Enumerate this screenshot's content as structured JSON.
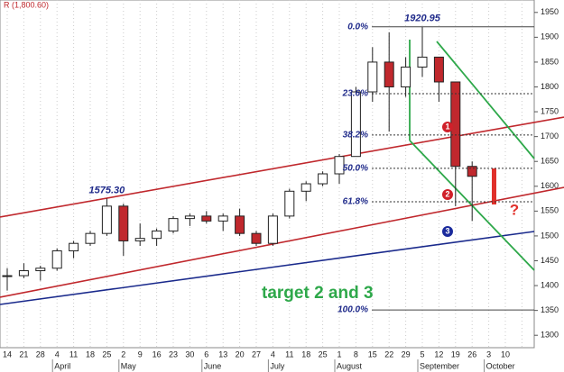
{
  "chart_data": {
    "type": "candlestick",
    "title": "R (1,800.60)",
    "categories": [
      "14",
      "21",
      "28",
      "4",
      "11",
      "18",
      "25",
      "2",
      "9",
      "16",
      "23",
      "30",
      "6",
      "13",
      "20",
      "27",
      "4",
      "11",
      "18",
      "25",
      "1",
      "8",
      "15",
      "22",
      "29",
      "5",
      "12",
      "19",
      "26",
      "3",
      "10",
      null
    ],
    "months": [
      null,
      null,
      null,
      "April",
      null,
      null,
      null,
      "May",
      null,
      null,
      null,
      null,
      "June",
      null,
      null,
      null,
      "July",
      null,
      null,
      null,
      "August",
      null,
      null,
      null,
      null,
      "September",
      null,
      null,
      null,
      "October",
      null,
      null
    ],
    "open": [
      1420,
      1420,
      1430,
      1435,
      1470,
      1485,
      1505,
      1560,
      1490,
      1495,
      1510,
      1535,
      1540,
      1530,
      1540,
      1505,
      1485,
      1540,
      1590,
      1605,
      1625,
      1660,
      1790,
      1850,
      1800,
      1840,
      1860,
      1810,
      1640,
      null,
      null,
      null
    ],
    "high": [
      1435,
      1445,
      1440,
      1475,
      1490,
      1510,
      1575.3,
      1565,
      1525,
      1515,
      1540,
      1545,
      1550,
      1545,
      1555,
      1510,
      1545,
      1595,
      1610,
      1630,
      1665,
      1800,
      1880,
      1910,
      1860,
      1920.95,
      1860,
      1810,
      1650,
      null,
      null,
      null
    ],
    "low": [
      1390,
      1415,
      1410,
      1430,
      1455,
      1480,
      1500,
      1460,
      1480,
      1480,
      1505,
      1520,
      1525,
      1510,
      1500,
      1480,
      1480,
      1535,
      1570,
      1600,
      1605,
      1660,
      1770,
      1710,
      1780,
      1820,
      1770,
      1560,
      1530,
      null,
      null,
      null
    ],
    "close": [
      1420,
      1430,
      1435,
      1470,
      1485,
      1505,
      1560,
      1490,
      1495,
      1510,
      1535,
      1540,
      1530,
      1540,
      1505,
      1485,
      1540,
      1590,
      1605,
      1625,
      1660,
      1790,
      1850,
      1800,
      1840,
      1860,
      1810,
      1640,
      1620,
      null,
      null,
      null
    ],
    "up_color": "#ffffff",
    "down_color": "#c0282d",
    "ylim": [
      1275,
      1975
    ],
    "yticks": [
      1300,
      1350,
      1400,
      1450,
      1500,
      1550,
      1600,
      1650,
      1700,
      1750,
      1800,
      1850,
      1900,
      1950
    ],
    "fib_levels": [
      {
        "value": 1920.95,
        "label": "0.0%"
      },
      {
        "value": 1786.5,
        "label": "23.6%"
      },
      {
        "value": 1703.2,
        "label": "38.2%"
      },
      {
        "value": 1636,
        "label": "50.0%"
      },
      {
        "value": 1568.7,
        "label": "61.8%"
      },
      {
        "value": 1351,
        "label": "100.0%"
      }
    ],
    "price_labels": [
      {
        "value": 1575.3,
        "label": "1575.30"
      },
      {
        "value": 1920.95,
        "label": "1920.95"
      }
    ],
    "annotations": [
      "1",
      "2",
      "3",
      "?",
      "target 2 and 3"
    ]
  }
}
